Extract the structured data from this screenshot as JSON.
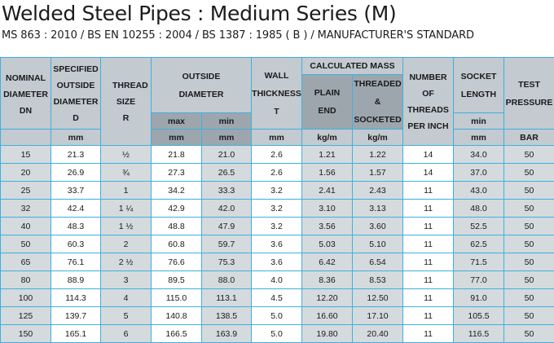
{
  "title": "Welded Steel Pipes : Medium Series (M)",
  "subtitle": "MS 863 : 2010 / BS EN 10255 : 2004 / BS 1387 : 1985 ( B ) / MANUFACTURER'S STANDARD",
  "headers": {
    "nominal": "NOMINAL DIAMETER DN",
    "specified": "SPECIFIED OUTSIDE DIAMETER D",
    "specified_unit": "mm",
    "thread": "THREAD SIZE R",
    "outside": "OUTSIDE DIAMETER",
    "outside_max": "max",
    "outside_min": "min",
    "outside_max_unit": "mm",
    "outside_min_unit": "mm",
    "wall": "WALL THICKNESS T",
    "wall_unit": "mm",
    "mass": "CALCULATED MASS",
    "plain": "PLAIN END",
    "threaded": "THREADED & SOCKETED",
    "plain_unit": "kg/m",
    "threaded_unit": "kg/m",
    "threads": "NUMBER OF THREADS PER INCH",
    "socket": "SOCKET LENGTH",
    "socket_min": "min",
    "socket_unit": "mm",
    "test": "TEST PRESSURE",
    "test_unit": "BAR"
  },
  "rows": [
    [
      "15",
      "21.3",
      "½",
      "21.8",
      "21.0",
      "2.6",
      "1.21",
      "1.22",
      "14",
      "34.0",
      "50"
    ],
    [
      "20",
      "26.9",
      "¾",
      "27.3",
      "26.5",
      "2.6",
      "1.56",
      "1.57",
      "14",
      "37.0",
      "50"
    ],
    [
      "25",
      "33.7",
      "1",
      "34.2",
      "33.3",
      "3.2",
      "2.41",
      "2.43",
      "11",
      "43.0",
      "50"
    ],
    [
      "32",
      "42.4",
      "1 ¼",
      "42.9",
      "42.0",
      "3.2",
      "3.10",
      "3.13",
      "11",
      "48.0",
      "50"
    ],
    [
      "40",
      "48.3",
      "1 ½",
      "48.8",
      "47.9",
      "3.2",
      "3.56",
      "3.60",
      "11",
      "52.5",
      "50"
    ],
    [
      "50",
      "60.3",
      "2",
      "60.8",
      "59.7",
      "3.6",
      "5.03",
      "5.10",
      "11",
      "62.5",
      "50"
    ],
    [
      "65",
      "76.1",
      "2 ½",
      "76.6",
      "75.3",
      "3.6",
      "6.42",
      "6.54",
      "11",
      "71.5",
      "50"
    ],
    [
      "80",
      "88.9",
      "3",
      "89.5",
      "88.0",
      "4.0",
      "8.36",
      "8.53",
      "11",
      "77.0",
      "50"
    ],
    [
      "100",
      "114.3",
      "4",
      "115.0",
      "113.1",
      "4.5",
      "12.20",
      "12.50",
      "11",
      "91.0",
      "50"
    ],
    [
      "125",
      "139.7",
      "5",
      "140.8",
      "138.5",
      "5.0",
      "16.60",
      "17.10",
      "11",
      "105.5",
      "50"
    ],
    [
      "150",
      "165.1",
      "6",
      "166.5",
      "163.9",
      "5.0",
      "19.80",
      "20.40",
      "11",
      "116.5",
      "50"
    ]
  ]
}
